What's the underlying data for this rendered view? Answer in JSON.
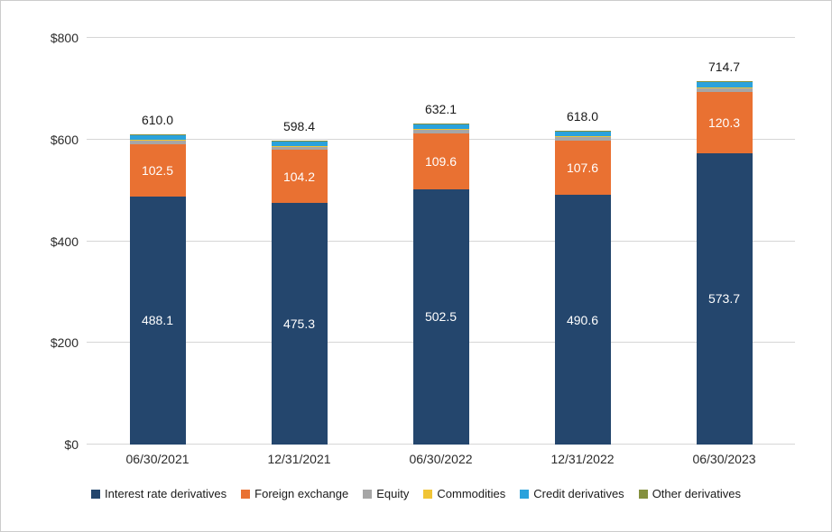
{
  "chart_data": {
    "type": "bar",
    "stacked": true,
    "title": "",
    "xlabel": "",
    "ylabel": "",
    "ylim": [
      0,
      800
    ],
    "grid": true,
    "legend_position": "bottom",
    "categories": [
      "06/30/2021",
      "12/31/2021",
      "06/30/2022",
      "12/31/2022",
      "06/30/2023"
    ],
    "series": [
      {
        "name": "Interest rate derivatives",
        "color": "#24466d",
        "values": [
          488.1,
          475.3,
          502.5,
          490.6,
          573.7
        ],
        "show_labels": true,
        "label_color": "#ffffff"
      },
      {
        "name": "Foreign exchange",
        "color": "#e97132",
        "values": [
          102.5,
          104.2,
          109.6,
          107.6,
          120.3
        ],
        "show_labels": true,
        "label_color": "#ffffff"
      },
      {
        "name": "Equity",
        "color": "#a6a6a6",
        "values": [
          8.0,
          7.5,
          8.5,
          7.5,
          8.0
        ],
        "show_labels": false
      },
      {
        "name": "Commodities",
        "color": "#f0c435",
        "values": [
          1.0,
          1.0,
          1.0,
          1.0,
          1.0
        ],
        "show_labels": false
      },
      {
        "name": "Credit derivatives",
        "color": "#2aa2dc",
        "values": [
          9.4,
          9.4,
          9.5,
          10.3,
          10.7
        ],
        "show_labels": false
      },
      {
        "name": "Other derivatives",
        "color": "#84903e",
        "values": [
          1.0,
          1.0,
          1.0,
          1.0,
          1.0
        ],
        "show_labels": false
      }
    ],
    "totals": [
      "610.0",
      "598.4",
      "632.1",
      "618.0",
      "714.7"
    ],
    "y_ticks": [
      {
        "value": 0,
        "label": "$0"
      },
      {
        "value": 200,
        "label": "$200"
      },
      {
        "value": 400,
        "label": "$400"
      },
      {
        "value": 600,
        "label": "$600"
      },
      {
        "value": 800,
        "label": "$800"
      }
    ]
  }
}
